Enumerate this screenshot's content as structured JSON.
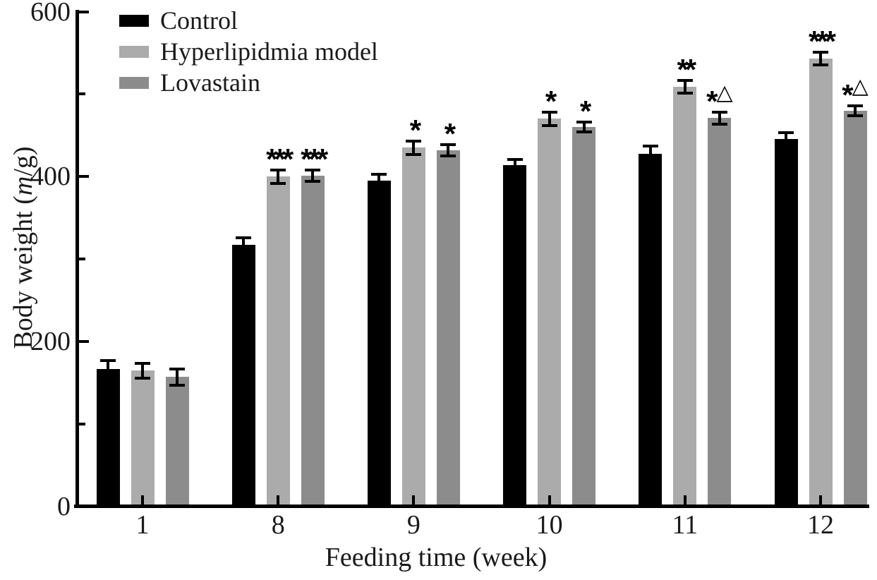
{
  "chart_data": {
    "type": "bar",
    "title": "",
    "xlabel": "Feeding time (week)",
    "ylabel": "Body weight (m/g)",
    "ylabel_parts": [
      "Body weight (",
      "m",
      "/g)"
    ],
    "categories": [
      "1",
      "8",
      "9",
      "10",
      "11",
      "12"
    ],
    "series": [
      {
        "name": "Control",
        "color": "#000000",
        "values": [
          167,
          317,
          395,
          414,
          428,
          446
        ],
        "errors": [
          10,
          9,
          8,
          7,
          9,
          7
        ],
        "sig_markers": [
          "",
          "",
          "",
          "",
          "",
          ""
        ]
      },
      {
        "name": "Hyperlipidmia model",
        "color": "#ABABAB",
        "values": [
          165,
          400,
          435,
          470,
          509,
          543
        ],
        "errors": [
          9,
          8,
          8,
          8,
          8,
          8
        ],
        "sig_markers": [
          "",
          "***",
          "*",
          "*",
          "**",
          "***"
        ]
      },
      {
        "name": "Lovastain",
        "color": "#8C8C8C",
        "values": [
          157,
          401,
          432,
          460,
          471,
          480
        ],
        "errors": [
          10,
          7,
          7,
          6,
          7,
          6
        ],
        "sig_markers": [
          "",
          "***",
          "*",
          "*",
          "*△",
          "*△"
        ]
      }
    ],
    "ylim": [
      0,
      600
    ],
    "yticks_major": [
      0,
      200,
      400,
      600
    ],
    "yticks_minor": [
      100,
      300,
      500
    ],
    "legend_position": "top-left",
    "grid": false,
    "error_bar_color": "#000000",
    "axis_color": "#000000",
    "background_color": "#ffffff"
  }
}
